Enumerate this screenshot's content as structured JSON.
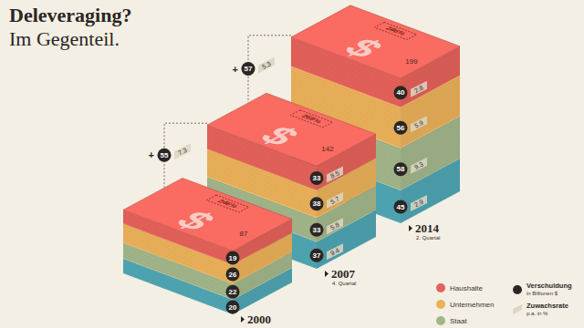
{
  "chart_data": {
    "type": "bar",
    "title": "Deleveraging?",
    "subtitle": "Im Gegenteil.",
    "stacked": true,
    "data_labels": true,
    "legend": "bottom-right",
    "symbol": "$",
    "categories": [
      "2000",
      "2007",
      "2014"
    ],
    "category_sublabels": [
      null,
      "4. Quartal",
      "2. Quartal"
    ],
    "series": [
      {
        "name": "Haushalte",
        "color": "#e5625a",
        "values": [
          19,
          33,
          40
        ],
        "growth": [
          null,
          8.5,
          2.8
        ]
      },
      {
        "name": "Unternehmen",
        "color": "#ebb15a",
        "values": [
          26,
          38,
          56
        ],
        "growth": [
          null,
          5.7,
          5.9
        ]
      },
      {
        "name": "Staat",
        "color": "#a2b68a",
        "values": [
          22,
          33,
          58
        ],
        "growth": [
          null,
          5.8,
          9.3
        ]
      },
      {
        "color": "#4fa6b3",
        "values": [
          20,
          37,
          45
        ],
        "growth": [
          null,
          9.4,
          2.9
        ]
      }
    ],
    "totals": [
      87,
      142,
      199
    ],
    "debt_ratio": {
      "values": [
        246,
        269,
        286
      ],
      "value_labels": [
        "246%",
        "269%",
        "286%"
      ]
    },
    "changes": [
      {
        "sign": "+",
        "value": 55,
        "rate": 7.3
      },
      {
        "sign": "+",
        "value": 57,
        "rate": 5.3
      }
    ],
    "legend_extra": [
      {
        "title": "Verschuldung",
        "subtitle": "in Billionen $"
      },
      {
        "title": "Zuwachsrate",
        "subtitle": "p.a. in %"
      }
    ]
  }
}
